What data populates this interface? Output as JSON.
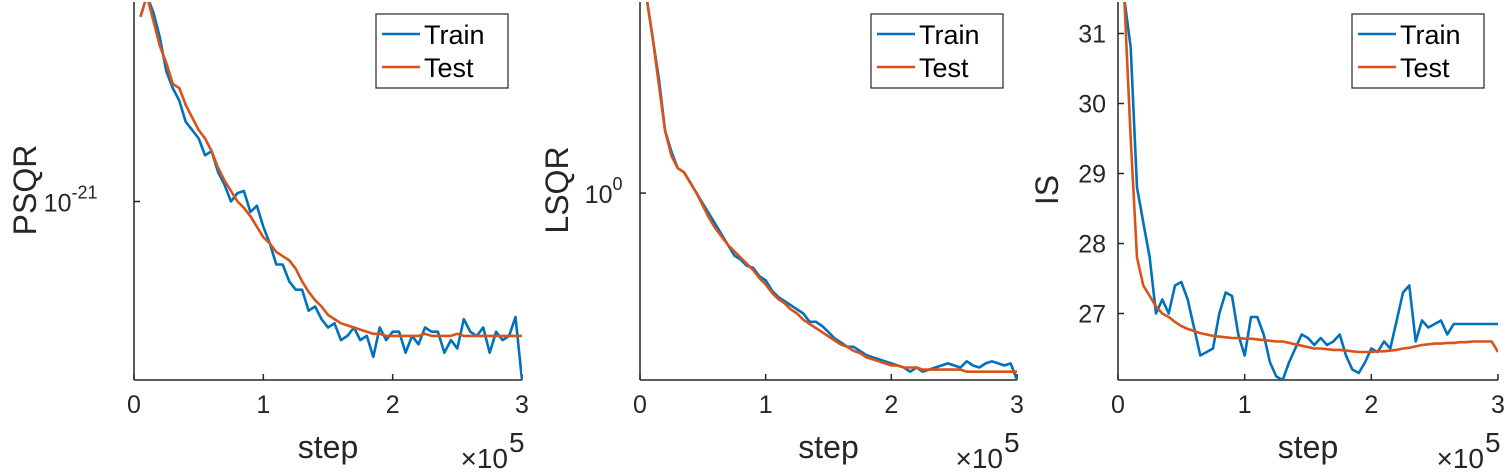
{
  "colors": {
    "train": "#0072BD",
    "test": "#D95319",
    "axis": "#262626"
  },
  "legend": [
    "Train",
    "Test"
  ],
  "chart_data": [
    {
      "type": "line",
      "ylabel": "PSQR",
      "xlabel": "step",
      "x_multiplier": "×10",
      "x_multiplier_exp": "5",
      "y_scale": "log",
      "y_tick_labels": [
        {
          "base": "10",
          "exp": "-21",
          "value": -21.0
        }
      ],
      "x_ticks": [
        0,
        1,
        2,
        3
      ],
      "xlim": [
        0,
        3
      ],
      "ylim_log10": [
        -21.85,
        -20.05
      ],
      "legend_position": "top-right",
      "series": [
        {
          "name": "Train",
          "x": [
            0.05,
            0.1,
            0.15,
            0.2,
            0.25,
            0.3,
            0.35,
            0.4,
            0.45,
            0.5,
            0.55,
            0.6,
            0.65,
            0.7,
            0.75,
            0.8,
            0.85,
            0.9,
            0.95,
            1.0,
            1.05,
            1.1,
            1.15,
            1.2,
            1.25,
            1.3,
            1.35,
            1.4,
            1.45,
            1.5,
            1.55,
            1.6,
            1.65,
            1.7,
            1.75,
            1.8,
            1.85,
            1.9,
            1.95,
            2.0,
            2.05,
            2.1,
            2.15,
            2.2,
            2.25,
            2.3,
            2.35,
            2.4,
            2.45,
            2.5,
            2.55,
            2.6,
            2.65,
            2.7,
            2.75,
            2.8,
            2.85,
            2.9,
            2.95,
            3.0
          ],
          "log10_y": [
            -20.12,
            -20.02,
            -20.1,
            -20.22,
            -20.38,
            -20.46,
            -20.52,
            -20.62,
            -20.66,
            -20.7,
            -20.78,
            -20.76,
            -20.86,
            -20.92,
            -21.0,
            -20.96,
            -20.95,
            -21.05,
            -21.02,
            -21.12,
            -21.2,
            -21.3,
            -21.3,
            -21.38,
            -21.42,
            -21.42,
            -21.52,
            -21.5,
            -21.56,
            -21.6,
            -21.58,
            -21.66,
            -21.64,
            -21.6,
            -21.66,
            -21.64,
            -21.74,
            -21.6,
            -21.66,
            -21.62,
            -21.62,
            -21.72,
            -21.64,
            -21.68,
            -21.6,
            -21.62,
            -21.62,
            -21.72,
            -21.66,
            -21.7,
            -21.56,
            -21.62,
            -21.64,
            -21.6,
            -21.72,
            -21.62,
            -21.66,
            -21.64,
            -21.55,
            -21.85
          ]
        },
        {
          "name": "Test",
          "x": [
            0.05,
            0.1,
            0.15,
            0.2,
            0.25,
            0.3,
            0.35,
            0.4,
            0.45,
            0.5,
            0.55,
            0.6,
            0.65,
            0.7,
            0.75,
            0.8,
            0.85,
            0.9,
            0.95,
            1.0,
            1.05,
            1.1,
            1.15,
            1.2,
            1.25,
            1.3,
            1.35,
            1.4,
            1.45,
            1.5,
            1.55,
            1.6,
            1.65,
            1.7,
            1.75,
            1.8,
            1.85,
            1.9,
            1.95,
            2.0,
            2.05,
            2.1,
            2.15,
            2.2,
            2.25,
            2.3,
            2.35,
            2.4,
            2.45,
            2.5,
            2.55,
            2.6,
            2.65,
            2.7,
            2.75,
            2.8,
            2.85,
            2.9,
            2.95,
            3.0
          ],
          "log10_y": [
            -20.12,
            -20.02,
            -20.14,
            -20.26,
            -20.34,
            -20.44,
            -20.46,
            -20.54,
            -20.6,
            -20.66,
            -20.7,
            -20.76,
            -20.84,
            -20.9,
            -20.95,
            -21.0,
            -21.03,
            -21.07,
            -21.12,
            -21.17,
            -21.2,
            -21.24,
            -21.26,
            -21.28,
            -21.32,
            -21.38,
            -21.43,
            -21.47,
            -21.5,
            -21.54,
            -21.56,
            -21.58,
            -21.59,
            -21.6,
            -21.61,
            -21.62,
            -21.63,
            -21.63,
            -21.64,
            -21.64,
            -21.64,
            -21.64,
            -21.64,
            -21.64,
            -21.63,
            -21.64,
            -21.64,
            -21.64,
            -21.64,
            -21.63,
            -21.64,
            -21.64,
            -21.64,
            -21.64,
            -21.64,
            -21.64,
            -21.64,
            -21.64,
            -21.64,
            -21.64
          ]
        }
      ]
    },
    {
      "type": "line",
      "ylabel": "LSQR",
      "xlabel": "step",
      "x_multiplier": "×10",
      "x_multiplier_exp": "5",
      "y_scale": "log",
      "y_tick_labels": [
        {
          "base": "10",
          "exp": "0",
          "value": 0.0
        }
      ],
      "x_ticks": [
        0,
        1,
        2,
        3
      ],
      "xlim": [
        0,
        3
      ],
      "ylim_log10": [
        -0.9,
        0.92
      ],
      "legend_position": "top-right",
      "series": [
        {
          "name": "Train",
          "x": [
            0.05,
            0.1,
            0.15,
            0.2,
            0.25,
            0.3,
            0.35,
            0.4,
            0.45,
            0.5,
            0.55,
            0.6,
            0.65,
            0.7,
            0.75,
            0.8,
            0.85,
            0.9,
            0.95,
            1.0,
            1.05,
            1.1,
            1.15,
            1.2,
            1.25,
            1.3,
            1.35,
            1.4,
            1.45,
            1.5,
            1.55,
            1.6,
            1.65,
            1.7,
            1.75,
            1.8,
            1.85,
            1.9,
            1.95,
            2.0,
            2.05,
            2.1,
            2.15,
            2.2,
            2.25,
            2.3,
            2.35,
            2.4,
            2.45,
            2.5,
            2.55,
            2.6,
            2.65,
            2.7,
            2.75,
            2.8,
            2.85,
            2.9,
            2.95,
            3.0
          ],
          "log10_y": [
            0.95,
            0.75,
            0.55,
            0.3,
            0.2,
            0.12,
            0.1,
            0.05,
            0.0,
            -0.05,
            -0.1,
            -0.15,
            -0.2,
            -0.25,
            -0.3,
            -0.32,
            -0.35,
            -0.36,
            -0.4,
            -0.42,
            -0.47,
            -0.5,
            -0.52,
            -0.54,
            -0.56,
            -0.58,
            -0.62,
            -0.62,
            -0.64,
            -0.67,
            -0.7,
            -0.72,
            -0.74,
            -0.74,
            -0.76,
            -0.78,
            -0.79,
            -0.8,
            -0.81,
            -0.82,
            -0.83,
            -0.84,
            -0.86,
            -0.84,
            -0.86,
            -0.85,
            -0.84,
            -0.83,
            -0.82,
            -0.83,
            -0.84,
            -0.81,
            -0.83,
            -0.84,
            -0.82,
            -0.81,
            -0.82,
            -0.83,
            -0.82,
            -0.9
          ]
        },
        {
          "name": "Test",
          "x": [
            0.05,
            0.1,
            0.15,
            0.2,
            0.25,
            0.3,
            0.35,
            0.4,
            0.45,
            0.5,
            0.55,
            0.6,
            0.65,
            0.7,
            0.75,
            0.8,
            0.85,
            0.9,
            0.95,
            1.0,
            1.05,
            1.1,
            1.15,
            1.2,
            1.25,
            1.3,
            1.35,
            1.4,
            1.45,
            1.5,
            1.55,
            1.6,
            1.65,
            1.7,
            1.75,
            1.8,
            1.85,
            1.9,
            1.95,
            2.0,
            2.05,
            2.1,
            2.15,
            2.2,
            2.25,
            2.3,
            2.35,
            2.4,
            2.45,
            2.5,
            2.55,
            2.6,
            2.65,
            2.7,
            2.75,
            2.8,
            2.85,
            2.9,
            2.95,
            3.0
          ],
          "log10_y": [
            0.95,
            0.75,
            0.52,
            0.3,
            0.18,
            0.12,
            0.1,
            0.05,
            0.0,
            -0.06,
            -0.12,
            -0.17,
            -0.21,
            -0.25,
            -0.28,
            -0.31,
            -0.34,
            -0.37,
            -0.41,
            -0.44,
            -0.48,
            -0.51,
            -0.53,
            -0.56,
            -0.58,
            -0.61,
            -0.63,
            -0.65,
            -0.67,
            -0.69,
            -0.71,
            -0.73,
            -0.74,
            -0.76,
            -0.77,
            -0.79,
            -0.8,
            -0.81,
            -0.82,
            -0.83,
            -0.83,
            -0.84,
            -0.84,
            -0.84,
            -0.85,
            -0.85,
            -0.85,
            -0.85,
            -0.85,
            -0.85,
            -0.85,
            -0.86,
            -0.86,
            -0.86,
            -0.86,
            -0.86,
            -0.86,
            -0.86,
            -0.86,
            -0.86
          ]
        }
      ]
    },
    {
      "type": "line",
      "ylabel": "IS",
      "xlabel": "step",
      "x_multiplier": "×10",
      "x_multiplier_exp": "5",
      "y_scale": "linear",
      "y_ticks": [
        27,
        28,
        29,
        30,
        31
      ],
      "x_ticks": [
        0,
        1,
        2,
        3
      ],
      "xlim": [
        0,
        3
      ],
      "ylim": [
        26.05,
        31.45
      ],
      "legend_position": "top-right",
      "series": [
        {
          "name": "Train",
          "x": [
            0.05,
            0.1,
            0.15,
            0.2,
            0.25,
            0.3,
            0.35,
            0.4,
            0.45,
            0.5,
            0.55,
            0.6,
            0.65,
            0.7,
            0.75,
            0.8,
            0.85,
            0.9,
            0.95,
            1.0,
            1.05,
            1.1,
            1.15,
            1.2,
            1.25,
            1.3,
            1.35,
            1.4,
            1.45,
            1.5,
            1.55,
            1.6,
            1.65,
            1.7,
            1.75,
            1.8,
            1.85,
            1.9,
            1.95,
            2.0,
            2.05,
            2.1,
            2.15,
            2.2,
            2.25,
            2.3,
            2.35,
            2.4,
            2.45,
            2.5,
            2.55,
            2.6,
            2.65,
            2.7,
            2.75,
            2.8,
            2.85,
            2.9,
            2.95,
            3.0
          ],
          "y": [
            31.5,
            30.8,
            28.8,
            28.3,
            27.8,
            27.0,
            27.2,
            27.0,
            27.4,
            27.45,
            27.2,
            26.8,
            26.4,
            26.45,
            26.5,
            27.0,
            27.3,
            27.25,
            26.7,
            26.4,
            26.95,
            26.95,
            26.7,
            26.3,
            26.1,
            26.05,
            26.3,
            26.5,
            26.7,
            26.65,
            26.55,
            26.65,
            26.55,
            26.6,
            26.7,
            26.4,
            26.2,
            26.15,
            26.3,
            26.5,
            26.45,
            26.6,
            26.5,
            26.9,
            27.3,
            27.4,
            26.6,
            26.9,
            26.8,
            26.85,
            26.9,
            26.7,
            26.85,
            26.85,
            26.85,
            26.85,
            26.85,
            26.85,
            26.85,
            26.85
          ]
        },
        {
          "name": "Test",
          "x": [
            0.05,
            0.1,
            0.15,
            0.2,
            0.25,
            0.3,
            0.35,
            0.4,
            0.45,
            0.5,
            0.55,
            0.6,
            0.65,
            0.7,
            0.75,
            0.8,
            0.85,
            0.9,
            0.95,
            1.0,
            1.05,
            1.1,
            1.15,
            1.2,
            1.25,
            1.3,
            1.35,
            1.4,
            1.45,
            1.5,
            1.55,
            1.6,
            1.65,
            1.7,
            1.75,
            1.8,
            1.85,
            1.9,
            1.95,
            2.0,
            2.05,
            2.1,
            2.15,
            2.2,
            2.25,
            2.3,
            2.35,
            2.4,
            2.45,
            2.5,
            2.55,
            2.6,
            2.65,
            2.7,
            2.75,
            2.8,
            2.85,
            2.9,
            2.95,
            3.0
          ],
          "y": [
            31.5,
            29.5,
            27.8,
            27.4,
            27.25,
            27.1,
            27.0,
            26.95,
            26.88,
            26.82,
            26.78,
            26.75,
            26.72,
            26.7,
            26.68,
            26.67,
            26.66,
            26.65,
            26.65,
            26.64,
            26.64,
            26.63,
            26.62,
            26.61,
            26.6,
            26.6,
            26.58,
            26.56,
            26.54,
            26.52,
            26.5,
            26.5,
            26.49,
            26.48,
            26.48,
            26.47,
            26.46,
            26.45,
            26.45,
            26.45,
            26.46,
            26.46,
            26.47,
            26.48,
            26.5,
            26.51,
            26.53,
            26.55,
            26.56,
            26.57,
            26.57,
            26.58,
            26.58,
            26.59,
            26.59,
            26.6,
            26.6,
            26.6,
            26.6,
            26.45
          ]
        }
      ]
    }
  ]
}
